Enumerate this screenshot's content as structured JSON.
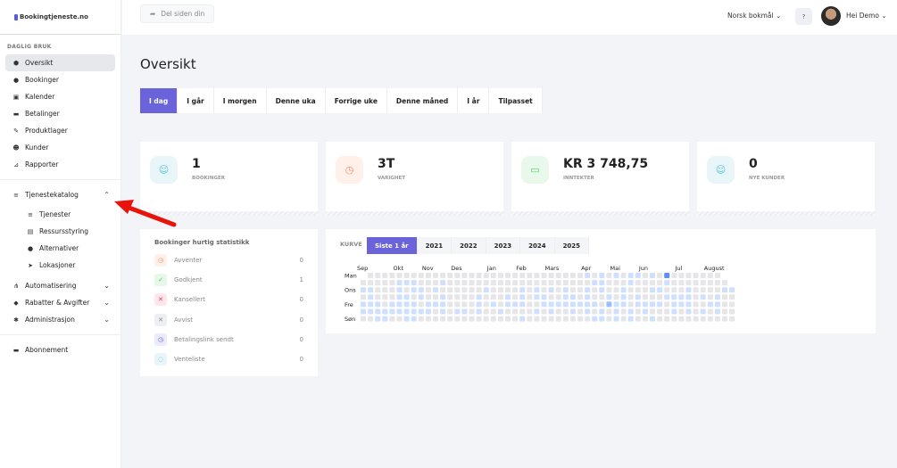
{
  "brand": "Bookingtjeneste.no",
  "header": {
    "share_label": "Del siden din",
    "language": "Norsk bokmål",
    "greeting": "Hei Demo"
  },
  "sidebar": {
    "section": "DAGLIG BRUK",
    "items": [
      {
        "label": "Oversikt",
        "icon": "box-icon"
      },
      {
        "label": "Bookinger",
        "icon": "clock-icon"
      },
      {
        "label": "Kalender",
        "icon": "calendar-icon"
      },
      {
        "label": "Betalinger",
        "icon": "wallet-icon"
      },
      {
        "label": "Produktlager",
        "icon": "magic-icon"
      },
      {
        "label": "Kunder",
        "icon": "users-icon"
      },
      {
        "label": "Rapporter",
        "icon": "chart-icon"
      }
    ],
    "catalog": {
      "label": "Tjenestekatalog",
      "sub": [
        "Tjenester",
        "Ressursstyring",
        "Alternativer",
        "Lokasjoner"
      ]
    },
    "groups": [
      "Automatisering",
      "Rabatter & Avgifter",
      "Administrasjon"
    ],
    "subscription": "Abonnement"
  },
  "page_title": "Oversikt",
  "periods": [
    "I dag",
    "I går",
    "I morgen",
    "Denne uka",
    "Forrige uke",
    "Denne måned",
    "I år",
    "Tilpasset"
  ],
  "active_period": "I dag",
  "cards": [
    {
      "value": "1",
      "label": "BOOKINGER",
      "color": "#4fc3dd",
      "bg": "#e8f6fa",
      "icon": "☺"
    },
    {
      "value": "3T",
      "label": "VARIGHET",
      "color": "#ff8a65",
      "bg": "#fff0ea",
      "icon": "◷"
    },
    {
      "value": "KR 3 748,75",
      "label": "INNTEKTER",
      "color": "#4cd964",
      "bg": "#e8f9ec",
      "icon": "▭"
    },
    {
      "value": "0",
      "label": "NYE KUNDER",
      "color": "#4fc3dd",
      "bg": "#e8f6fa",
      "icon": "☺"
    }
  ],
  "stats": {
    "title": "Bookinger hurtig statistikk",
    "rows": [
      {
        "label": "Avventer",
        "count": "0",
        "color": "#ff8a65",
        "bg": "#fff0ea",
        "icon": "◷"
      },
      {
        "label": "Godkjent",
        "count": "1",
        "color": "#34c759",
        "bg": "#e6f8ea",
        "icon": "✓"
      },
      {
        "label": "Kansellert",
        "count": "0",
        "color": "#ff2d55",
        "bg": "#ffe6ec",
        "icon": "✕"
      },
      {
        "label": "Avvist",
        "count": "0",
        "color": "#888",
        "bg": "#eeeff2",
        "icon": "✕"
      },
      {
        "label": "Betalingslink sendt",
        "count": "0",
        "color": "#5b5fd6",
        "bg": "#ebebfb",
        "icon": "◷"
      },
      {
        "label": "Venteliste",
        "count": "0",
        "color": "#4fc3dd",
        "bg": "#e8f6fa",
        "icon": "◌"
      }
    ]
  },
  "curve": {
    "label": "KURVE",
    "tabs": [
      "Siste 1 år",
      "2021",
      "2022",
      "2023",
      "2024",
      "2025"
    ],
    "active": "Siste 1 år"
  },
  "chart_data": {
    "type": "heatmap",
    "months": [
      {
        "label": "Sep",
        "week": 0
      },
      {
        "label": "Okt",
        "week": 5
      },
      {
        "label": "Nov",
        "week": 9
      },
      {
        "label": "Des",
        "week": 13
      },
      {
        "label": "Jan",
        "week": 18
      },
      {
        "label": "Feb",
        "week": 22
      },
      {
        "label": "Mars",
        "week": 26
      },
      {
        "label": "Apr",
        "week": 31
      },
      {
        "label": "Mai",
        "week": 35
      },
      {
        "label": "Jun",
        "week": 39
      },
      {
        "label": "Jul",
        "week": 44
      },
      {
        "label": "August",
        "week": 48
      }
    ],
    "day_labels": [
      "Man",
      "",
      "Ons",
      "",
      "Fre",
      "",
      "Søn"
    ],
    "rows": [
      "-0000000000000000000000000000001010101101030000000",
      "000001110001000000000000000000001100010000100000000",
      "1100010110100000010000101010100101001000110001000011",
      "0100011010010000100010101100110100101010001111010100",
      "1110111101110000101011100111111110211011110111001100",
      "1111111111010110100100001010010101010101000101010100",
      "0011001100000000000000100000000011010100100000000000"
    ],
    "levels": [
      "#e6e6e8",
      "#cfe0ff",
      "#9cbdfc",
      "#5f8ef5"
    ]
  }
}
